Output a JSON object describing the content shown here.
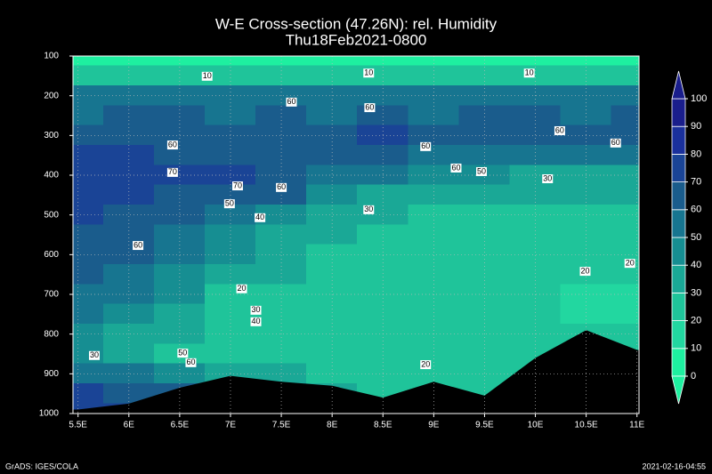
{
  "chart_data": {
    "type": "contour",
    "title": "W-E Cross-section (47.26N): rel. Humidity",
    "subtitle": "Thu18Feb2021-0800",
    "footer_left": "GrADS: IGES/COLA",
    "footer_right": "2021-02-16-04:55",
    "xlim": [
      5.45,
      11.02
    ],
    "ylim": [
      1000,
      100
    ],
    "xticks": [
      {
        "value": 5.5,
        "label": "5.5E"
      },
      {
        "value": 6,
        "label": "6E"
      },
      {
        "value": 6.5,
        "label": "6.5E"
      },
      {
        "value": 7,
        "label": "7E"
      },
      {
        "value": 7.5,
        "label": "7.5E"
      },
      {
        "value": 8,
        "label": "8E"
      },
      {
        "value": 8.5,
        "label": "8.5E"
      },
      {
        "value": 9,
        "label": "9E"
      },
      {
        "value": 9.5,
        "label": "9.5E"
      },
      {
        "value": 10,
        "label": "10E"
      },
      {
        "value": 10.5,
        "label": "10.5E"
      },
      {
        "value": 11,
        "label": "11E"
      }
    ],
    "yticks": [
      100,
      200,
      300,
      400,
      500,
      600,
      700,
      800,
      900,
      1000
    ],
    "grid": true,
    "x": [
      5.5,
      6,
      6.5,
      7,
      7.5,
      8,
      8.5,
      9,
      9.5,
      10,
      10.5,
      11
    ],
    "y": [
      100,
      150,
      200,
      250,
      300,
      350,
      400,
      450,
      500,
      550,
      600,
      650,
      700,
      750,
      800,
      850,
      900,
      950,
      1000
    ],
    "z": [
      [
        5,
        5,
        5,
        5,
        5,
        5,
        5,
        5,
        5,
        5,
        5,
        5
      ],
      [
        20,
        20,
        20,
        20,
        20,
        20,
        20,
        20,
        20,
        20,
        20,
        20
      ],
      [
        55,
        55,
        55,
        55,
        55,
        55,
        55,
        55,
        55,
        55,
        55,
        55
      ],
      [
        55,
        60,
        60,
        55,
        60,
        55,
        65,
        55,
        60,
        60,
        55,
        65
      ],
      [
        65,
        60,
        60,
        65,
        60,
        65,
        70,
        60,
        65,
        60,
        60,
        60
      ],
      [
        70,
        70,
        65,
        65,
        65,
        60,
        60,
        55,
        55,
        50,
        50,
        55
      ],
      [
        75,
        70,
        70,
        70,
        65,
        55,
        50,
        45,
        40,
        35,
        35,
        35
      ],
      [
        75,
        70,
        65,
        65,
        60,
        45,
        35,
        30,
        30,
        30,
        30,
        30
      ],
      [
        70,
        65,
        60,
        50,
        45,
        35,
        30,
        25,
        25,
        25,
        25,
        25
      ],
      [
        65,
        65,
        55,
        45,
        35,
        30,
        25,
        25,
        25,
        25,
        25,
        25
      ],
      [
        60,
        60,
        50,
        40,
        35,
        25,
        25,
        25,
        25,
        25,
        25,
        20
      ],
      [
        60,
        55,
        45,
        35,
        30,
        25,
        25,
        25,
        25,
        20,
        20,
        20
      ],
      [
        55,
        50,
        40,
        25,
        25,
        25,
        25,
        25,
        25,
        20,
        15,
        15
      ],
      [
        50,
        45,
        35,
        20,
        20,
        25,
        25,
        25,
        25,
        20,
        15,
        15
      ],
      [
        45,
        35,
        30,
        20,
        20,
        25,
        25,
        20,
        25,
        25,
        20,
        20
      ],
      [
        40,
        30,
        25,
        20,
        20,
        25,
        25,
        20,
        25,
        25,
        20,
        25
      ],
      [
        55,
        50,
        45,
        35,
        30,
        25,
        25,
        20,
        25,
        25,
        25,
        25
      ],
      [
        70,
        65,
        60,
        55,
        40,
        30,
        25,
        25,
        25,
        25,
        25,
        25
      ],
      [
        75,
        70,
        60,
        55,
        45,
        35,
        25,
        25,
        25,
        25,
        25,
        25
      ]
    ],
    "surface_pressure": [
      990,
      975,
      935,
      905,
      920,
      930,
      960,
      920,
      955,
      860,
      790,
      840
    ],
    "levels": [
      0,
      10,
      20,
      30,
      40,
      50,
      60,
      70,
      80,
      90,
      100
    ],
    "colors": [
      "#1ef0a0",
      "#22d7a0",
      "#1fc49a",
      "#1aa896",
      "#168e92",
      "#177590",
      "#1a5c8c",
      "#1a4496",
      "#1a309c",
      "#1a1e8c"
    ],
    "terrain_color": "#000000",
    "contour_labels": [
      {
        "x": 6.77,
        "y": 151,
        "value": 10
      },
      {
        "x": 8.36,
        "y": 143,
        "value": 10
      },
      {
        "x": 9.94,
        "y": 143,
        "value": 10
      },
      {
        "x": 7.6,
        "y": 216,
        "value": 60
      },
      {
        "x": 8.37,
        "y": 230,
        "value": 60
      },
      {
        "x": 6.43,
        "y": 324,
        "value": 60
      },
      {
        "x": 8.92,
        "y": 328,
        "value": 60
      },
      {
        "x": 10.24,
        "y": 288,
        "value": 60
      },
      {
        "x": 10.79,
        "y": 319,
        "value": 60
      },
      {
        "x": 6.43,
        "y": 393,
        "value": 70
      },
      {
        "x": 7.07,
        "y": 427,
        "value": 70
      },
      {
        "x": 7.5,
        "y": 431,
        "value": 60
      },
      {
        "x": 6.99,
        "y": 472,
        "value": 50
      },
      {
        "x": 7.29,
        "y": 507,
        "value": 40
      },
      {
        "x": 8.36,
        "y": 487,
        "value": 30
      },
      {
        "x": 9.22,
        "y": 382,
        "value": 60
      },
      {
        "x": 9.47,
        "y": 391,
        "value": 50
      },
      {
        "x": 10.12,
        "y": 409,
        "value": 30
      },
      {
        "x": 6.09,
        "y": 577,
        "value": 60
      },
      {
        "x": 7.11,
        "y": 686,
        "value": 20
      },
      {
        "x": 7.25,
        "y": 740,
        "value": 30
      },
      {
        "x": 7.25,
        "y": 769,
        "value": 40
      },
      {
        "x": 6.53,
        "y": 848,
        "value": 50
      },
      {
        "x": 6.61,
        "y": 872,
        "value": 60
      },
      {
        "x": 5.66,
        "y": 854,
        "value": 30
      },
      {
        "x": 8.92,
        "y": 877,
        "value": 20
      },
      {
        "x": 10.49,
        "y": 642,
        "value": 20
      },
      {
        "x": 10.93,
        "y": 622,
        "value": 20
      }
    ]
  }
}
